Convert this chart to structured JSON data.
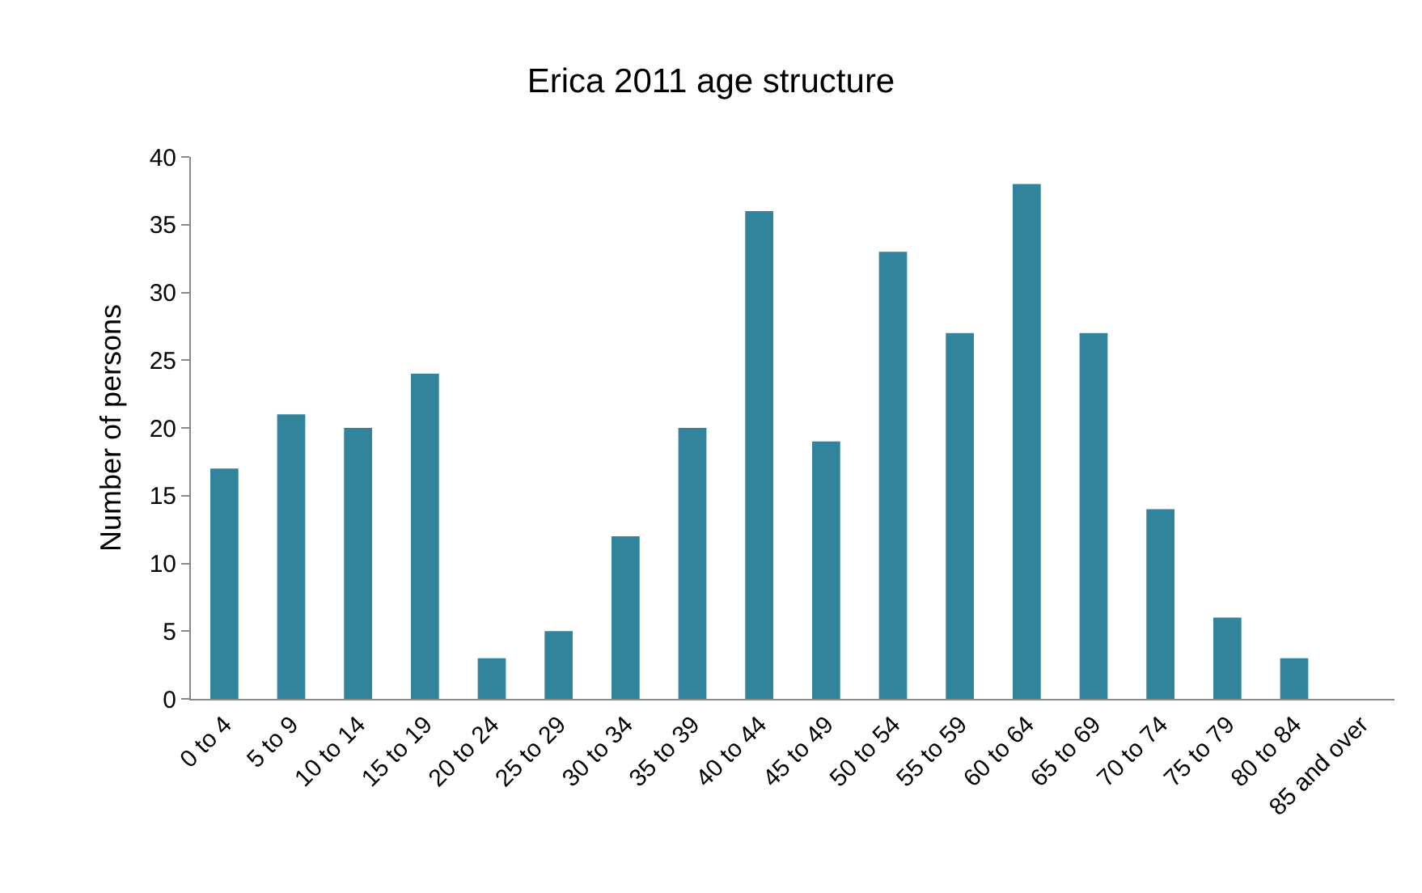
{
  "chart_data": {
    "type": "bar",
    "title": "Erica 2011 age structure",
    "ylabel": "Number of persons",
    "categories": [
      "0 to 4",
      "5 to 9",
      "10 to 14",
      "15 to 19",
      "20 to 24",
      "25 to 29",
      "30 to 34",
      "35 to 39",
      "40 to 44",
      "45 to 49",
      "50 to 54",
      "55 to 59",
      "60 to 64",
      "65 to 69",
      "70 to 74",
      "75 to 79",
      "80 to 84",
      "85 and over"
    ],
    "values": [
      17,
      21,
      20,
      24,
      3,
      5,
      12,
      20,
      36,
      19,
      33,
      27,
      38,
      27,
      14,
      6,
      3,
      0
    ],
    "color": "#31849b",
    "ylim": [
      0,
      40
    ],
    "yticks": [
      0,
      5,
      10,
      15,
      20,
      25,
      30,
      35,
      40
    ],
    "grid": false,
    "legend": false
  }
}
